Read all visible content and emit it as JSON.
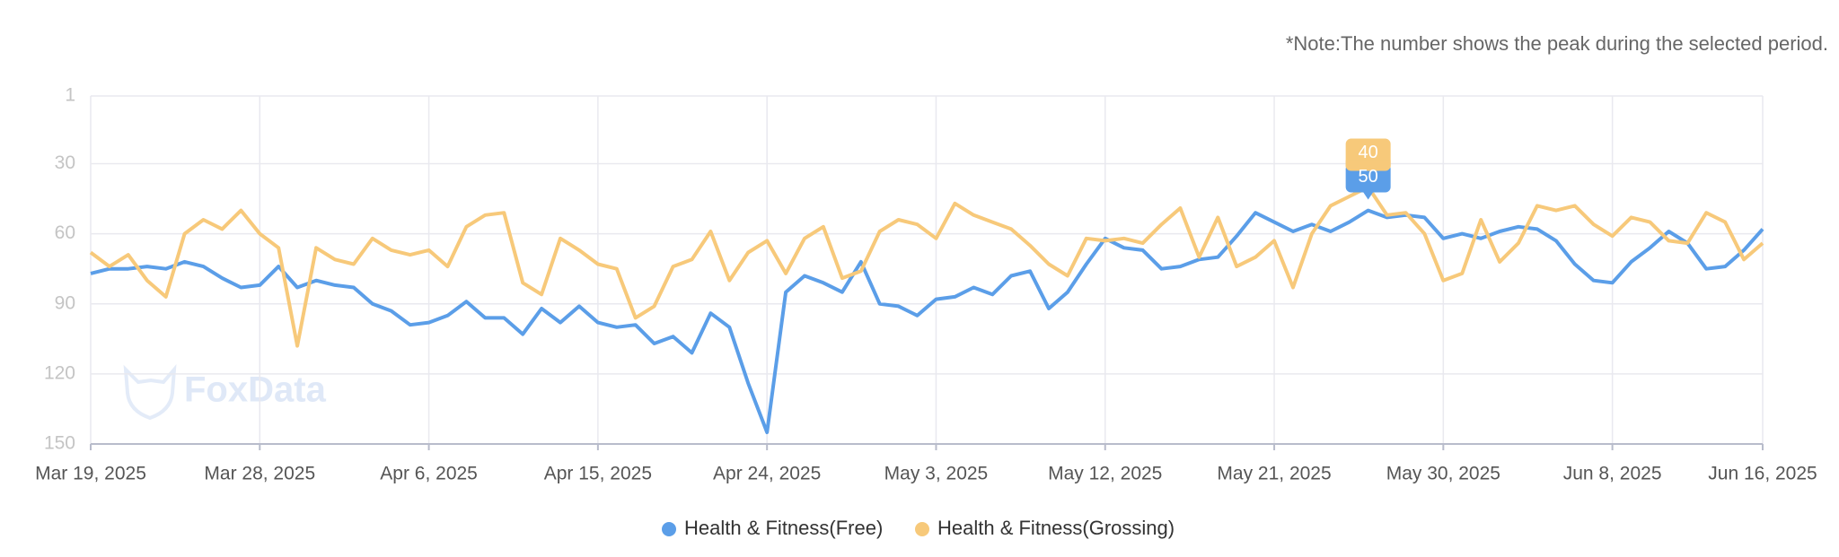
{
  "chart_data": {
    "type": "line",
    "note": "*Note:The number shows the peak during the selected period.",
    "watermark": "FoxData",
    "categories": [
      "Mar 19, 2025",
      null,
      null,
      null,
      null,
      null,
      null,
      null,
      null,
      "Mar 28, 2025",
      null,
      null,
      null,
      null,
      null,
      null,
      null,
      null,
      "Apr 6, 2025",
      null,
      null,
      null,
      null,
      null,
      null,
      null,
      null,
      "Apr 15, 2025",
      null,
      null,
      null,
      null,
      null,
      null,
      null,
      null,
      "Apr 24, 2025",
      null,
      null,
      null,
      null,
      null,
      null,
      null,
      null,
      "May 3, 2025",
      null,
      null,
      null,
      null,
      null,
      null,
      null,
      null,
      "May 12, 2025",
      null,
      null,
      null,
      null,
      null,
      null,
      null,
      null,
      "May 21, 2025",
      null,
      null,
      null,
      null,
      null,
      null,
      null,
      null,
      "May 30, 2025",
      null,
      null,
      null,
      null,
      null,
      null,
      null,
      null,
      "Jun 8, 2025",
      null,
      null,
      null,
      null,
      null,
      null,
      null,
      "Jun 16, 2025"
    ],
    "series": [
      {
        "name": "Health & Fitness(Free)",
        "color": "#5b9ee8",
        "values": [
          77,
          75,
          75,
          74,
          75,
          72,
          74,
          79,
          83,
          82,
          74,
          83,
          80,
          82,
          83,
          90,
          93,
          99,
          98,
          95,
          89,
          96,
          96,
          103,
          92,
          98,
          91,
          98,
          100,
          99,
          107,
          104,
          111,
          94,
          100,
          124,
          145,
          85,
          78,
          81,
          85,
          72,
          90,
          91,
          95,
          88,
          87,
          83,
          86,
          78,
          76,
          92,
          85,
          73,
          62,
          66,
          67,
          75,
          74,
          71,
          70,
          61,
          51,
          55,
          59,
          56,
          59,
          55,
          50,
          53,
          52,
          53,
          62,
          60,
          62,
          59,
          57,
          58,
          63,
          73,
          80,
          81,
          72,
          66,
          59,
          64,
          75,
          74,
          67,
          58
        ]
      },
      {
        "name": "Health & Fitness(Grossing)",
        "color": "#f7c97a",
        "values": [
          68,
          74,
          69,
          80,
          87,
          60,
          54,
          58,
          50,
          60,
          66,
          108,
          66,
          71,
          73,
          62,
          67,
          69,
          67,
          74,
          57,
          52,
          51,
          81,
          86,
          62,
          67,
          73,
          75,
          96,
          91,
          74,
          71,
          59,
          80,
          68,
          63,
          77,
          62,
          57,
          79,
          76,
          59,
          54,
          56,
          62,
          47,
          52,
          55,
          58,
          65,
          73,
          78,
          62,
          63,
          62,
          64,
          56,
          49,
          70,
          53,
          74,
          70,
          63,
          83,
          60,
          48,
          44,
          40,
          52,
          51,
          60,
          80,
          77,
          54,
          72,
          64,
          48,
          50,
          48,
          56,
          61,
          53,
          55,
          63,
          64,
          51,
          55,
          71,
          64
        ]
      }
    ],
    "peak_index": 68,
    "ylim": [
      1,
      150
    ],
    "y_reversed": true,
    "yticks": [
      1,
      30,
      60,
      90,
      120,
      150
    ],
    "grid": true,
    "legend": "bottom"
  }
}
